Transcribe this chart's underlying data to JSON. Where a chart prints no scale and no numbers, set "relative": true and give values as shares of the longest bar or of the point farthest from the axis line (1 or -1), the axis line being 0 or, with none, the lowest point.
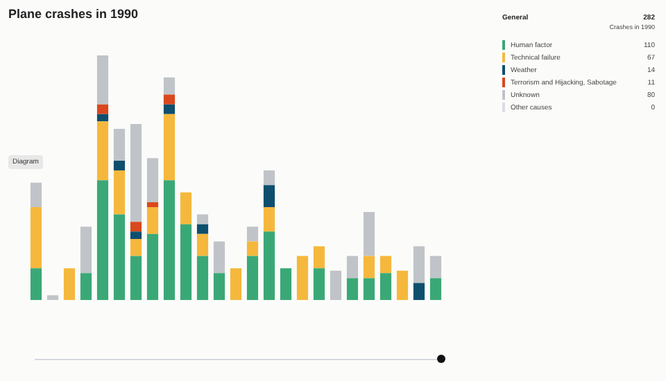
{
  "chart_data": {
    "type": "bar",
    "title": "Plane crashes in 1990",
    "stacked": true,
    "relative": true,
    "legend": "top right",
    "legend_title": "General",
    "categories": [
      null,
      null,
      null,
      null,
      null,
      null,
      null,
      null,
      null,
      null,
      null,
      null,
      null,
      null,
      null,
      null,
      null,
      null,
      null,
      null,
      null,
      null,
      null,
      null,
      null
    ],
    "series": [
      {
        "name": "Human factor",
        "color": "#3aa876",
        "values": [
          0.13,
          0,
          0,
          0.11,
          0.49,
          0.35,
          0.18,
          0.27,
          0.49,
          0.31,
          0.18,
          0.11,
          0,
          0.18,
          0.28,
          0.13,
          0,
          0.13,
          0,
          0.09,
          0.09,
          0.11,
          0,
          0,
          0.09
        ]
      },
      {
        "name": "Technical failure",
        "color": "#f5b83d",
        "values": [
          0.25,
          0,
          0.13,
          0,
          0.24,
          0.18,
          0.07,
          0.11,
          0.27,
          0.13,
          0.09,
          0,
          0.13,
          0.06,
          0.1,
          0,
          0.18,
          0.09,
          0,
          0,
          0.09,
          0.07,
          0.12,
          0,
          0
        ]
      },
      {
        "name": "Weather",
        "color": "#0e4f6e",
        "values": [
          0,
          0,
          0,
          0,
          0.03,
          0.04,
          0.03,
          0,
          0.04,
          0,
          0.04,
          0,
          0,
          0,
          0.09,
          0,
          0,
          0,
          0,
          0,
          0,
          0,
          0,
          0.07,
          0
        ]
      },
      {
        "name": "Terrorism and Hijacking, Sabotage",
        "color": "#d9481e",
        "values": [
          0,
          0,
          0,
          0,
          0.04,
          0,
          0.04,
          0.02,
          0.04,
          0,
          0,
          0,
          0,
          0,
          0,
          0,
          0,
          0,
          0,
          0,
          0,
          0,
          0,
          0,
          0
        ]
      },
      {
        "name": "Unknown",
        "color": "#c0c4c8",
        "values": [
          0.1,
          0.02,
          0,
          0.19,
          0.2,
          0.13,
          0.4,
          0.18,
          0.07,
          0,
          0.04,
          0.13,
          0,
          0.06,
          0.06,
          0,
          0,
          0,
          0.12,
          0.09,
          0.18,
          0,
          0,
          0.15,
          0.09
        ]
      },
      {
        "name": "Other causes",
        "color": "#dcdde0",
        "values": [
          0,
          0,
          0,
          0,
          0,
          0,
          0,
          0,
          0,
          0,
          0,
          0,
          0,
          0,
          0,
          0,
          0,
          0,
          0,
          0,
          0,
          0,
          0,
          0,
          0
        ]
      }
    ],
    "annotations": [
      "282",
      "Crashes in 1990",
      "110",
      "67",
      "14",
      "11",
      "80",
      "0",
      "Diagram"
    ]
  }
}
